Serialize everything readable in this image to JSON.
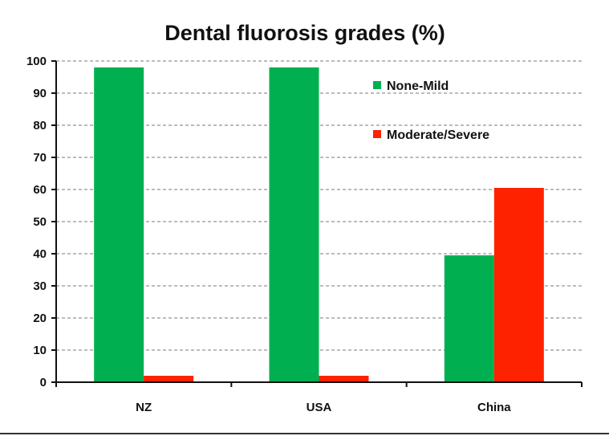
{
  "chart_data": {
    "type": "bar",
    "title": "Dental fluorosis grades (%)",
    "xlabel": "",
    "ylabel": "",
    "categories": [
      "NZ",
      "USA",
      "China"
    ],
    "series": [
      {
        "name": "None-Mild",
        "values": [
          98,
          98,
          39.5
        ],
        "color": "#00b050"
      },
      {
        "name": "Moderate/Severe",
        "values": [
          2,
          2,
          60.5
        ],
        "color": "#ff2200"
      }
    ],
    "ylim": [
      0,
      100
    ],
    "yticks": [
      0,
      10,
      20,
      30,
      40,
      50,
      60,
      70,
      80,
      90,
      100
    ],
    "grid": true,
    "legend_position": "top-right"
  }
}
